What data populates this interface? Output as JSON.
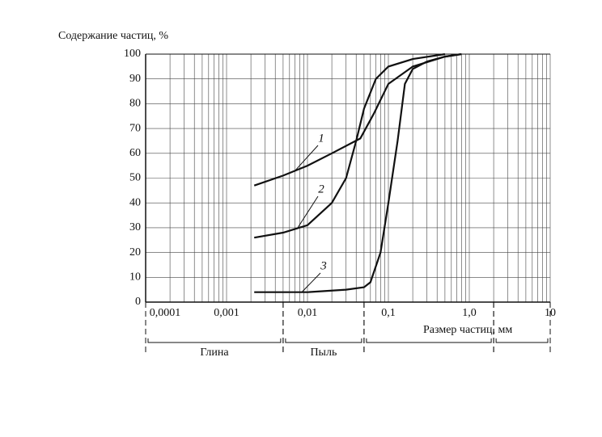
{
  "chart_data": {
    "type": "line",
    "log_x": true,
    "grid": true,
    "color": "#111111",
    "y_label": "Содержание частиц, %",
    "x_label": "Размер частиц, мм",
    "xlim": [
      0.0001,
      10
    ],
    "ylim": [
      0,
      100
    ],
    "xticks": [
      {
        "value": 0.0001,
        "label": "0,0001"
      },
      {
        "value": 0.001,
        "label": "0,001"
      },
      {
        "value": 0.01,
        "label": "0,01"
      },
      {
        "value": 0.1,
        "label": "0,1"
      },
      {
        "value": 1,
        "label": "1,0"
      },
      10
    ],
    "yticks": [
      0,
      10,
      20,
      30,
      40,
      50,
      60,
      70,
      80,
      90,
      100
    ],
    "zones": [
      {
        "label": "Глина",
        "from": 0.0001,
        "to": 0.005
      },
      {
        "label": "Пыль",
        "from": 0.005,
        "to": 0.05
      },
      {
        "from": 0.05,
        "to": 2
      },
      {
        "from": 2,
        "to": 10
      }
    ],
    "series": [
      {
        "name": "1",
        "x": [
          0.0022,
          0.005,
          0.01,
          0.02,
          0.045,
          0.066,
          0.1,
          0.2,
          0.5,
          0.8
        ],
        "values": [
          47,
          51,
          55,
          60,
          66,
          76,
          88,
          95,
          99,
          100
        ]
      },
      {
        "name": "2",
        "x": [
          0.0022,
          0.005,
          0.01,
          0.02,
          0.03,
          0.04,
          0.05,
          0.07,
          0.1,
          0.2,
          0.5
        ],
        "values": [
          26,
          28,
          31,
          40,
          50,
          65,
          78,
          90,
          95,
          98,
          100
        ]
      },
      {
        "name": "3",
        "x": [
          0.0022,
          0.01,
          0.03,
          0.05,
          0.06,
          0.08,
          0.1,
          0.13,
          0.16,
          0.2,
          0.3,
          0.5,
          0.8
        ],
        "values": [
          4,
          4,
          5,
          6,
          8,
          20,
          40,
          65,
          88,
          94,
          97,
          99,
          100
        ]
      }
    ]
  }
}
